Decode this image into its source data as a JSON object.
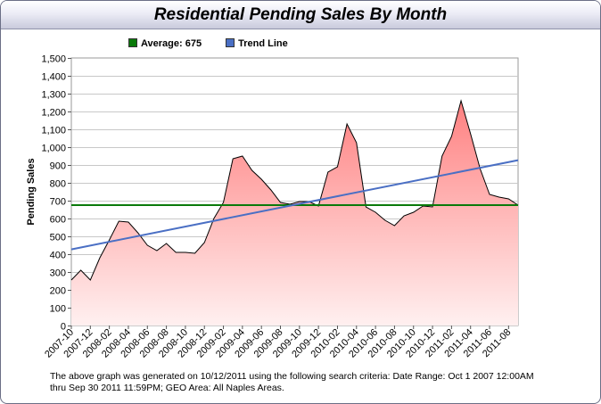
{
  "title": "Residential Pending Sales By Month",
  "legend": [
    {
      "label": "Average: 675",
      "color": "#0a7a0a"
    },
    {
      "label": "Trend Line",
      "color": "#4a6fc4"
    }
  ],
  "footnote": "The above graph was generated on 10/12/2011 using the following search criteria: Date Range: Oct 1 2007 12:00AM thru Sep 30 2011 11:59PM; GEO Area: All Naples Areas.",
  "chart_data": {
    "type": "area",
    "title": "Residential Pending Sales By Month",
    "xlabel": "",
    "ylabel": "Pending Sales",
    "ylim": [
      0,
      1500
    ],
    "yticks": [
      0,
      100,
      200,
      300,
      400,
      500,
      600,
      700,
      800,
      900,
      1000,
      1100,
      1200,
      1300,
      1400,
      1500
    ],
    "ytick_labels": [
      "0",
      "100",
      "200",
      "300",
      "400",
      "500",
      "600",
      "700",
      "800",
      "900",
      "1,000",
      "1,100",
      "1,200",
      "1,300",
      "1,400",
      "1,500"
    ],
    "categories": [
      "2007-10",
      "2007-11",
      "2007-12",
      "2008-01",
      "2008-02",
      "2008-03",
      "2008-04",
      "2008-05",
      "2008-06",
      "2008-07",
      "2008-08",
      "2008-09",
      "2008-10",
      "2008-11",
      "2008-12",
      "2009-01",
      "2009-02",
      "2009-03",
      "2009-04",
      "2009-05",
      "2009-06",
      "2009-07",
      "2009-08",
      "2009-09",
      "2009-10",
      "2009-11",
      "2009-12",
      "2010-01",
      "2010-02",
      "2010-03",
      "2010-04",
      "2010-05",
      "2010-06",
      "2010-07",
      "2010-08",
      "2010-09",
      "2010-10",
      "2010-11",
      "2010-12",
      "2011-01",
      "2011-02",
      "2011-03",
      "2011-04",
      "2011-05",
      "2011-06",
      "2011-07",
      "2011-08",
      "2011-09"
    ],
    "x_tick_labels": [
      "2007-10",
      "2007-12",
      "2008-02",
      "2008-04",
      "2008-06",
      "2008-08",
      "2008-10",
      "2008-12",
      "2009-02",
      "2009-04",
      "2009-06",
      "2009-08",
      "2009-10",
      "2009-12",
      "2010-02",
      "2010-04",
      "2010-06",
      "2010-08",
      "2010-10",
      "2010-12",
      "2011-02",
      "2011-04",
      "2011-06",
      "2011-08"
    ],
    "values": [
      255,
      310,
      255,
      380,
      480,
      585,
      580,
      520,
      450,
      420,
      460,
      410,
      410,
      405,
      465,
      600,
      690,
      935,
      950,
      870,
      820,
      760,
      690,
      680,
      695,
      695,
      670,
      860,
      890,
      1130,
      1025,
      665,
      635,
      590,
      560,
      615,
      635,
      670,
      665,
      950,
      1060,
      1260,
      1075,
      880,
      735,
      720,
      710,
      675
    ],
    "average": 675,
    "trend_line": {
      "start": 427,
      "end": 927
    },
    "grid": true,
    "legend_position": "top-left",
    "colors": {
      "area_top": "#ff8080",
      "area_bottom": "#fff0f0",
      "line": "#000000",
      "average": "#0a7a0a",
      "trend": "#4a6fc4",
      "grid": "#c8c8c8"
    }
  }
}
